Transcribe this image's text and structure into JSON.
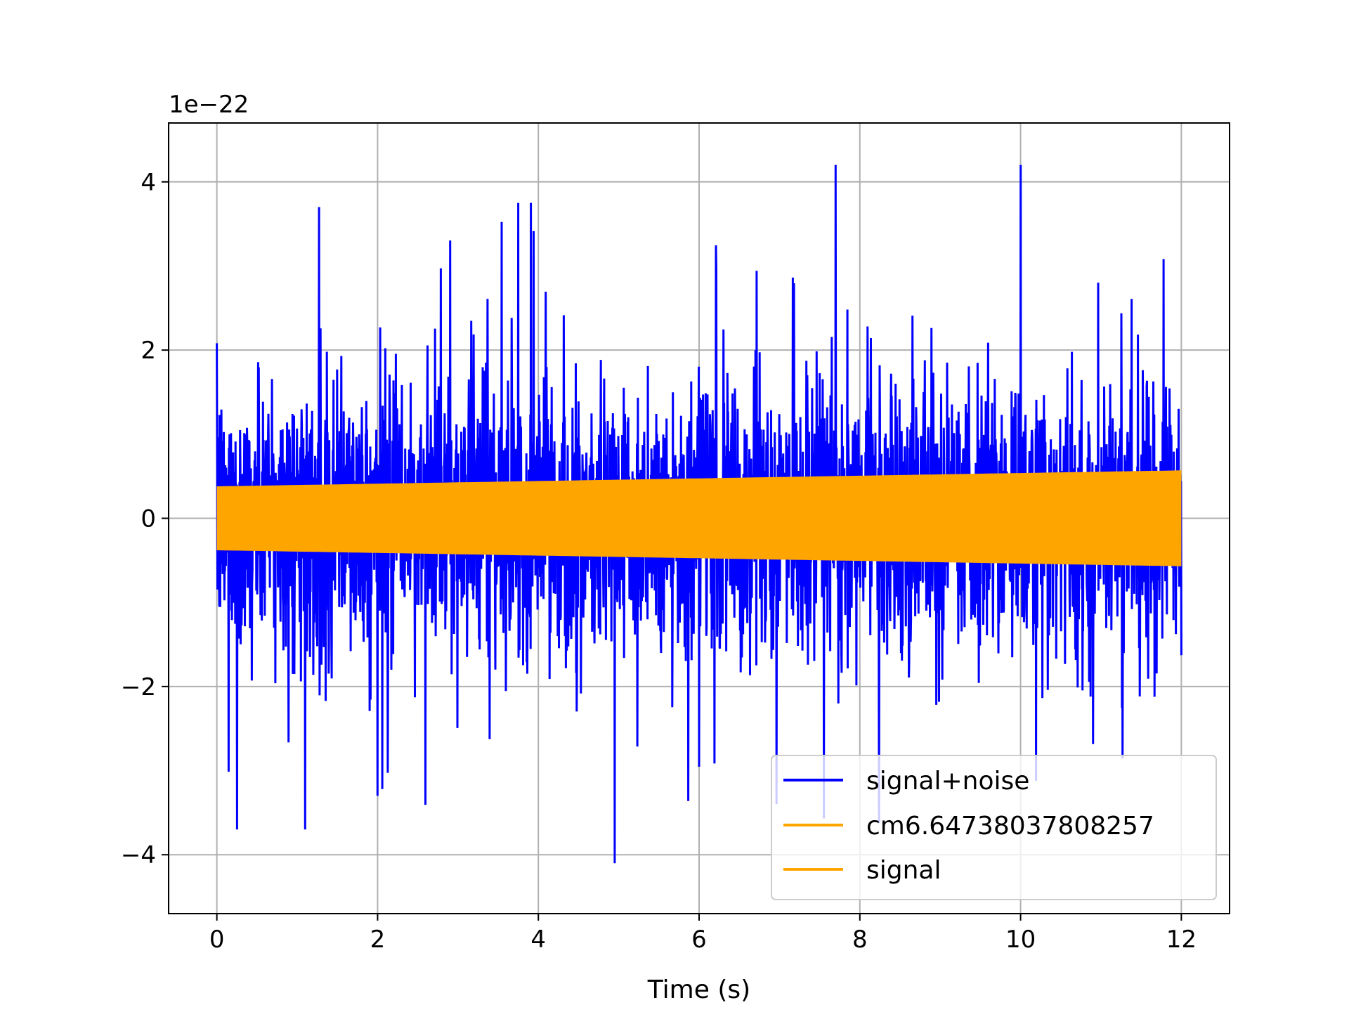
{
  "chart_data": {
    "type": "line",
    "title": "",
    "xlabel": "Time (s)",
    "ylabel": "",
    "y_offset_label": "1e−22",
    "xlim": [
      -0.6,
      12.6
    ],
    "ylim": [
      -4.7,
      4.7
    ],
    "x_ticks": [
      0,
      2,
      4,
      6,
      8,
      10,
      12
    ],
    "x_tick_labels": [
      "0",
      "2",
      "4",
      "6",
      "8",
      "10",
      "12"
    ],
    "y_ticks": [
      -4,
      -2,
      0,
      2,
      4
    ],
    "y_tick_labels": [
      "−4",
      "−2",
      "0",
      "2",
      "4"
    ],
    "grid": true,
    "legend_position": "lower right",
    "series": [
      {
        "name": "signal+noise",
        "color": "#0000ff",
        "kind": "noise",
        "x_range": [
          0,
          12
        ],
        "typical_amplitude": 2.0,
        "peak_max": 4.2,
        "peak_min": -4.1,
        "notable_peaks": [
          {
            "x": 7.7,
            "y": 4.2
          },
          {
            "x": 10.0,
            "y": 4.2
          },
          {
            "x": 4.95,
            "y": -4.1
          },
          {
            "x": 1.27,
            "y": 3.7
          },
          {
            "x": 3.75,
            "y": 3.75
          },
          {
            "x": 0.25,
            "y": -3.7
          },
          {
            "x": 1.1,
            "y": -3.7
          },
          {
            "x": 2.0,
            "y": -3.3
          }
        ]
      },
      {
        "name": "cm6.64738037808257",
        "color": "#ffa500",
        "kind": "chirp",
        "x_range": [
          0,
          12
        ],
        "amplitude_start": 0.38,
        "amplitude_end": 0.57
      },
      {
        "name": "signal",
        "color": "#ffa500",
        "kind": "chirp",
        "x_range": [
          0,
          12
        ],
        "amplitude_start": 0.38,
        "amplitude_end": 0.57
      }
    ]
  }
}
